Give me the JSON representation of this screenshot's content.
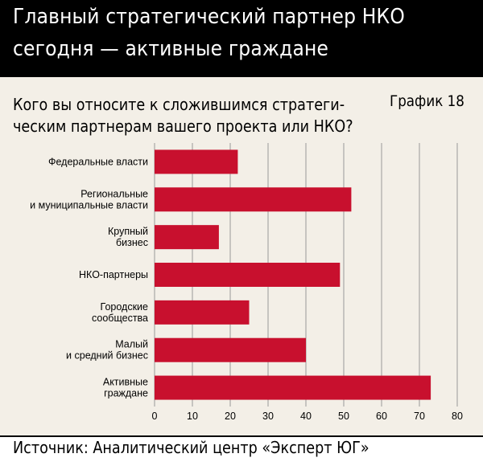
{
  "header": {
    "title_line1": "Главный стратегический партнер НКО",
    "title_line2": "сегодня — активные граждане"
  },
  "question": {
    "line1": "Кого вы относите к сложившимся стратеги-",
    "line2": "ческим партнерам вашего проекта или НКО?"
  },
  "chart_id": "График 18",
  "source": "Источник: Аналитический центр «Эксперт ЮГ»",
  "colors": {
    "bar": "#c8102e",
    "panel": "#f3efe7",
    "header": "#000000"
  },
  "chart_data": {
    "type": "bar",
    "orientation": "horizontal",
    "categories": [
      [
        "Федеральные власти"
      ],
      [
        "Региональные",
        "и муниципальные власти"
      ],
      [
        "Крупный",
        "бизнес"
      ],
      [
        "НКО-партнеры"
      ],
      [
        "Городские",
        "сообщества"
      ],
      [
        "Малый",
        "и средний бизнес"
      ],
      [
        "Активные",
        "граждане"
      ]
    ],
    "values": [
      22,
      52,
      17,
      49,
      25,
      40,
      73
    ],
    "xlim": [
      0,
      80
    ],
    "xticks": [
      "0",
      "10",
      "20",
      "30",
      "40",
      "50",
      "60",
      "70",
      "80"
    ],
    "grid": true,
    "legend": "none"
  }
}
